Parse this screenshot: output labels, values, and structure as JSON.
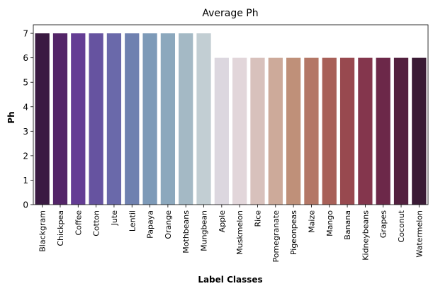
{
  "chart_data": {
    "type": "bar",
    "title": "Average Ph",
    "xlabel": "Label Classes",
    "ylabel": "Ph",
    "ylim": [
      0,
      7.35
    ],
    "yticks": [
      "0",
      "1",
      "2",
      "3",
      "4",
      "5",
      "6",
      "7"
    ],
    "grid": false,
    "categories": [
      "Blackgram",
      "Chickpea",
      "Coffee",
      "Cotton",
      "Jute",
      "Lentil",
      "Papaya",
      "Orange",
      "Mothbeans",
      "Mungbean",
      "Apple",
      "Muskmelon",
      "Rice",
      "Pomegranate",
      "Pigeonpeas",
      "Maize",
      "Mango",
      "Banana",
      "Kidneybeans",
      "Grapes",
      "Coconut",
      "Watermelon"
    ],
    "values": [
      7,
      7,
      7,
      7,
      7,
      7,
      7,
      7,
      7,
      7,
      6,
      6,
      6,
      6,
      6,
      6,
      6,
      6,
      6,
      6,
      6,
      6
    ],
    "colors": [
      "#3a1a42",
      "#532568",
      "#643d94",
      "#6653a0",
      "#6a69aa",
      "#6f81b0",
      "#7d9ab8",
      "#8ca8bd",
      "#a4b9c5",
      "#c2ced3",
      "#dcd7df",
      "#e2d6da",
      "#d8c1bc",
      "#cdaa9a",
      "#bf9079",
      "#b47766",
      "#a86058",
      "#98494f",
      "#84364d",
      "#6c2849",
      "#53203f",
      "#3a1b35"
    ]
  }
}
